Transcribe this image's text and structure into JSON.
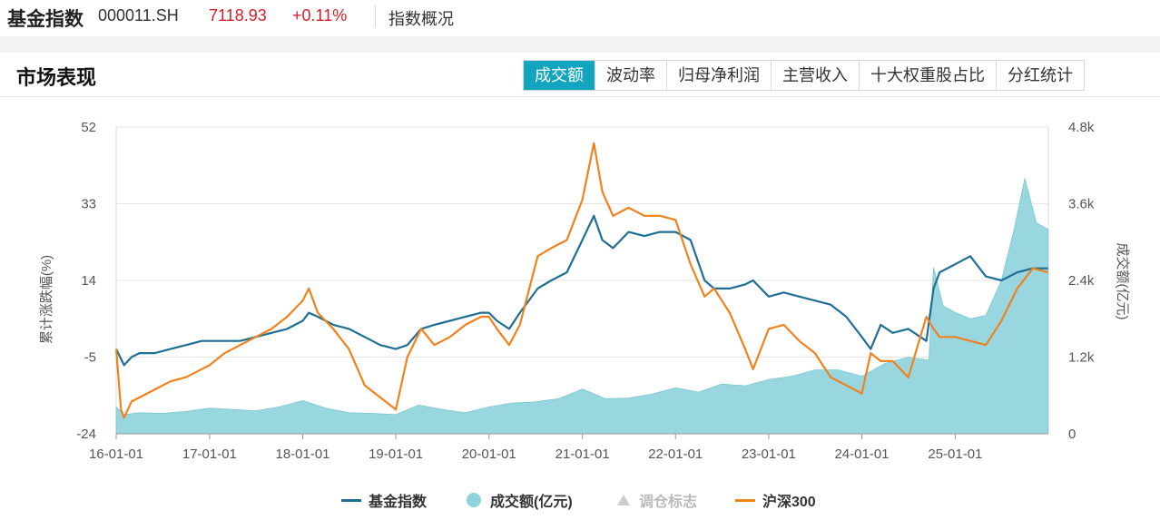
{
  "header": {
    "index_name": "基金指数",
    "code": "000011.SH",
    "price": "7118.93",
    "change": "+0.11%",
    "overview_link": "指数概况"
  },
  "section": {
    "title": "市场表现",
    "tabs": [
      {
        "label": "成交额",
        "active": true
      },
      {
        "label": "波动率",
        "active": false
      },
      {
        "label": "归母净利润",
        "active": false
      },
      {
        "label": "主营收入",
        "active": false
      },
      {
        "label": "十大权重股占比",
        "active": false
      },
      {
        "label": "分红统计",
        "active": false
      }
    ]
  },
  "colors": {
    "index_line": "#1f6f94",
    "hs300_line": "#f0821e",
    "volume_area": "#8dd3dc",
    "up_red": "#d0202a",
    "tab_active": "#13a5bd"
  },
  "chart_data": {
    "type": "line",
    "xlabel": "",
    "ylabel": "累计涨跌幅(%)",
    "y2label": "成交额(亿元)",
    "ylim": [
      -24,
      52
    ],
    "y2lim": [
      0,
      4800
    ],
    "yticks": [
      "52",
      "33",
      "14",
      "-5",
      "-24"
    ],
    "y2ticks": [
      "4.8k",
      "3.6k",
      "2.4k",
      "1.2k",
      "0"
    ],
    "xticks": [
      "16-01-01",
      "17-01-01",
      "18-01-01",
      "19-01-01",
      "20-01-01",
      "21-01-01",
      "22-01-01",
      "23-01-01",
      "24-01-01",
      "25-01-01"
    ],
    "grid": true,
    "legend_position": "bottom",
    "legend": [
      {
        "name": "基金指数",
        "kind": "line",
        "enabled": true
      },
      {
        "name": "成交额(亿元)",
        "kind": "area",
        "enabled": true
      },
      {
        "name": "调仓标志",
        "kind": "marker",
        "enabled": false
      },
      {
        "name": "沪深300",
        "kind": "line",
        "enabled": true
      }
    ],
    "series": [
      {
        "name": "基金指数",
        "axis": "left",
        "x": [
          "2016-01-01",
          "2016-02-01",
          "2016-03-01",
          "2016-04-01",
          "2016-06-01",
          "2016-08-01",
          "2016-10-01",
          "2016-12-01",
          "2017-01-01",
          "2017-03-01",
          "2017-05-01",
          "2017-07-01",
          "2017-09-01",
          "2017-11-01",
          "2018-01-01",
          "2018-01-25",
          "2018-03-01",
          "2018-05-01",
          "2018-07-01",
          "2018-09-01",
          "2018-11-01",
          "2019-01-01",
          "2019-02-15",
          "2019-04-10",
          "2019-06-01",
          "2019-08-01",
          "2019-10-01",
          "2019-12-01",
          "2020-01-01",
          "2020-02-01",
          "2020-03-20",
          "2020-05-01",
          "2020-07-10",
          "2020-09-01",
          "2020-11-01",
          "2021-01-01",
          "2021-02-15",
          "2021-03-20",
          "2021-05-01",
          "2021-07-01",
          "2021-09-01",
          "2021-11-01",
          "2022-01-01",
          "2022-03-01",
          "2022-04-25",
          "2022-06-01",
          "2022-08-01",
          "2022-10-01",
          "2022-11-01",
          "2023-01-01",
          "2023-03-01",
          "2023-05-01",
          "2023-07-01",
          "2023-09-01",
          "2023-11-01",
          "2024-01-01",
          "2024-02-05",
          "2024-03-15",
          "2024-05-01",
          "2024-07-01",
          "2024-09-10",
          "2024-10-08",
          "2024-11-01",
          "2025-01-01",
          "2025-03-01",
          "2025-05-01",
          "2025-07-01",
          "2025-09-01",
          "2025-11-01",
          "2025-12-31"
        ],
        "values": [
          -3,
          -7,
          -5,
          -4,
          -4,
          -3,
          -2,
          -1,
          -1,
          -1,
          -1,
          0,
          1,
          2,
          4,
          6,
          5,
          3,
          2,
          0,
          -2,
          -3,
          -2,
          2,
          3,
          4,
          5,
          6,
          6,
          4,
          2,
          6,
          12,
          14,
          16,
          24,
          30,
          24,
          22,
          26,
          25,
          26,
          26,
          24,
          14,
          12,
          12,
          13,
          14,
          10,
          11,
          10,
          9,
          8,
          5,
          0,
          -3,
          3,
          1,
          2,
          -1,
          12,
          16,
          18,
          20,
          15,
          14,
          16,
          17,
          17
        ]
      },
      {
        "name": "沪深300",
        "axis": "left",
        "x": [
          "2016-01-01",
          "2016-01-20",
          "2016-02-01",
          "2016-03-01",
          "2016-04-01",
          "2016-06-01",
          "2016-08-01",
          "2016-10-01",
          "2016-12-01",
          "2017-01-01",
          "2017-03-01",
          "2017-05-01",
          "2017-07-01",
          "2017-09-01",
          "2017-11-01",
          "2018-01-01",
          "2018-01-25",
          "2018-03-01",
          "2018-05-01",
          "2018-07-01",
          "2018-09-01",
          "2018-11-01",
          "2019-01-01",
          "2019-02-15",
          "2019-04-10",
          "2019-06-01",
          "2019-08-01",
          "2019-10-01",
          "2019-12-01",
          "2020-01-01",
          "2020-02-01",
          "2020-03-20",
          "2020-05-01",
          "2020-07-10",
          "2020-09-01",
          "2020-11-01",
          "2021-01-01",
          "2021-02-15",
          "2021-03-20",
          "2021-05-01",
          "2021-07-01",
          "2021-09-01",
          "2021-11-01",
          "2022-01-01",
          "2022-03-01",
          "2022-04-25",
          "2022-06-01",
          "2022-08-01",
          "2022-10-01",
          "2022-11-01",
          "2023-01-01",
          "2023-03-01",
          "2023-05-01",
          "2023-07-01",
          "2023-09-01",
          "2023-11-01",
          "2024-01-01",
          "2024-02-05",
          "2024-03-15",
          "2024-05-01",
          "2024-07-01",
          "2024-09-10",
          "2024-10-08",
          "2024-11-01",
          "2025-01-01",
          "2025-03-01",
          "2025-05-01",
          "2025-07-01",
          "2025-09-01",
          "2025-11-01",
          "2025-12-31"
        ],
        "values": [
          -3,
          -18,
          -20,
          -16,
          -15,
          -13,
          -11,
          -10,
          -8,
          -7,
          -4,
          -2,
          0,
          2,
          5,
          9,
          12,
          6,
          2,
          -3,
          -12,
          -15,
          -18,
          -5,
          2,
          -2,
          0,
          3,
          5,
          5,
          2,
          -2,
          3,
          20,
          22,
          24,
          34,
          48,
          36,
          30,
          32,
          30,
          30,
          29,
          18,
          10,
          12,
          6,
          -3,
          -8,
          2,
          3,
          -1,
          -4,
          -10,
          -12,
          -14,
          -4,
          -6,
          -6,
          -10,
          5,
          2,
          0,
          0,
          -1,
          -2,
          4,
          12,
          17,
          16
        ]
      },
      {
        "name": "成交额(亿元)",
        "axis": "right",
        "x": [
          "2016-01-01",
          "2016-02-01",
          "2016-04-01",
          "2016-07-01",
          "2016-10-01",
          "2017-01-01",
          "2017-04-01",
          "2017-07-01",
          "2017-10-01",
          "2018-01-01",
          "2018-04-01",
          "2018-07-01",
          "2018-10-01",
          "2019-01-01",
          "2019-04-01",
          "2019-07-01",
          "2019-10-01",
          "2020-01-01",
          "2020-04-01",
          "2020-07-01",
          "2020-10-01",
          "2021-01-01",
          "2021-04-01",
          "2021-07-01",
          "2021-10-01",
          "2022-01-01",
          "2022-04-01",
          "2022-07-01",
          "2022-10-01",
          "2023-01-01",
          "2023-04-01",
          "2023-07-01",
          "2023-10-01",
          "2024-01-01",
          "2024-04-01",
          "2024-07-01",
          "2024-09-20",
          "2024-10-08",
          "2024-11-15",
          "2025-01-01",
          "2025-03-01",
          "2025-05-01",
          "2025-07-01",
          "2025-08-20",
          "2025-10-01",
          "2025-11-15",
          "2025-12-31"
        ],
        "values": [
          420,
          300,
          330,
          320,
          350,
          400,
          380,
          360,
          420,
          520,
          400,
          330,
          320,
          300,
          450,
          380,
          330,
          420,
          480,
          500,
          550,
          700,
          550,
          560,
          620,
          720,
          650,
          780,
          750,
          850,
          900,
          1000,
          1000,
          900,
          1100,
          1200,
          1150,
          2600,
          2000,
          1900,
          1800,
          1850,
          2400,
          3200,
          4000,
          3300,
          3200
        ]
      }
    ]
  }
}
